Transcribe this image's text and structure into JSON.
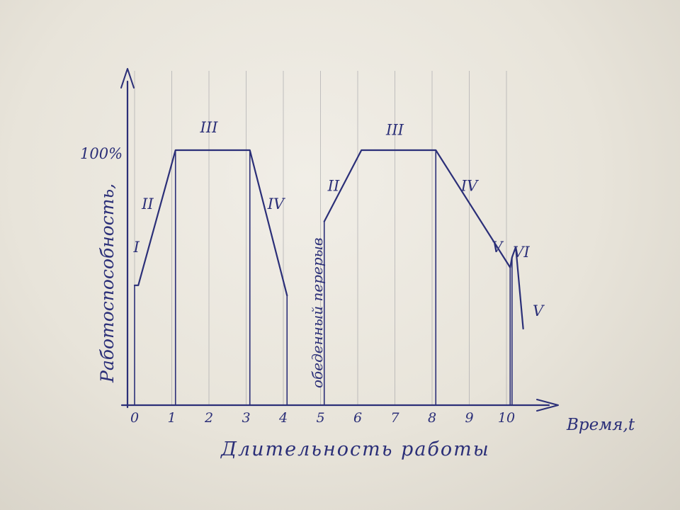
{
  "chart_data": {
    "type": "line",
    "ylabel": "Работоспособность,",
    "y_top_label": "100%",
    "xlabel": "Время,t",
    "x_caption": "Длительность работы",
    "x_ticks": [
      "0",
      "1",
      "2",
      "3",
      "4",
      "5",
      "6",
      "7",
      "8",
      "9",
      "10"
    ],
    "xlim": [
      0,
      11
    ],
    "ylim": [
      0,
      130
    ],
    "grid": true,
    "annotation_break": "обеденный перерыв",
    "series": [
      {
        "segment": "morning",
        "points": [
          [
            0,
            47
          ],
          [
            0.1,
            47
          ],
          [
            1.1,
            100
          ],
          [
            3.1,
            100
          ],
          [
            4.1,
            43
          ]
        ]
      },
      {
        "segment": "afternoon",
        "points": [
          [
            5.1,
            72
          ],
          [
            6.1,
            100
          ],
          [
            8.1,
            100
          ],
          [
            10.1,
            54
          ],
          [
            10.15,
            58
          ],
          [
            10.25,
            62
          ],
          [
            10.45,
            30
          ]
        ]
      }
    ],
    "phase_labels": [
      {
        "text": "I",
        "x": 0.05,
        "y": 60
      },
      {
        "text": "II",
        "x": 0.35,
        "y": 77
      },
      {
        "text": "III",
        "x": 2.0,
        "y": 107
      },
      {
        "text": "IV",
        "x": 3.8,
        "y": 77
      },
      {
        "text": "II",
        "x": 5.35,
        "y": 84
      },
      {
        "text": "III",
        "x": 7.0,
        "y": 106
      },
      {
        "text": "IV",
        "x": 9.0,
        "y": 84
      },
      {
        "text": "V",
        "x": 9.75,
        "y": 60
      },
      {
        "text": "VI",
        "x": 10.4,
        "y": 58
      },
      {
        "text": "V",
        "x": 10.85,
        "y": 35
      }
    ]
  }
}
